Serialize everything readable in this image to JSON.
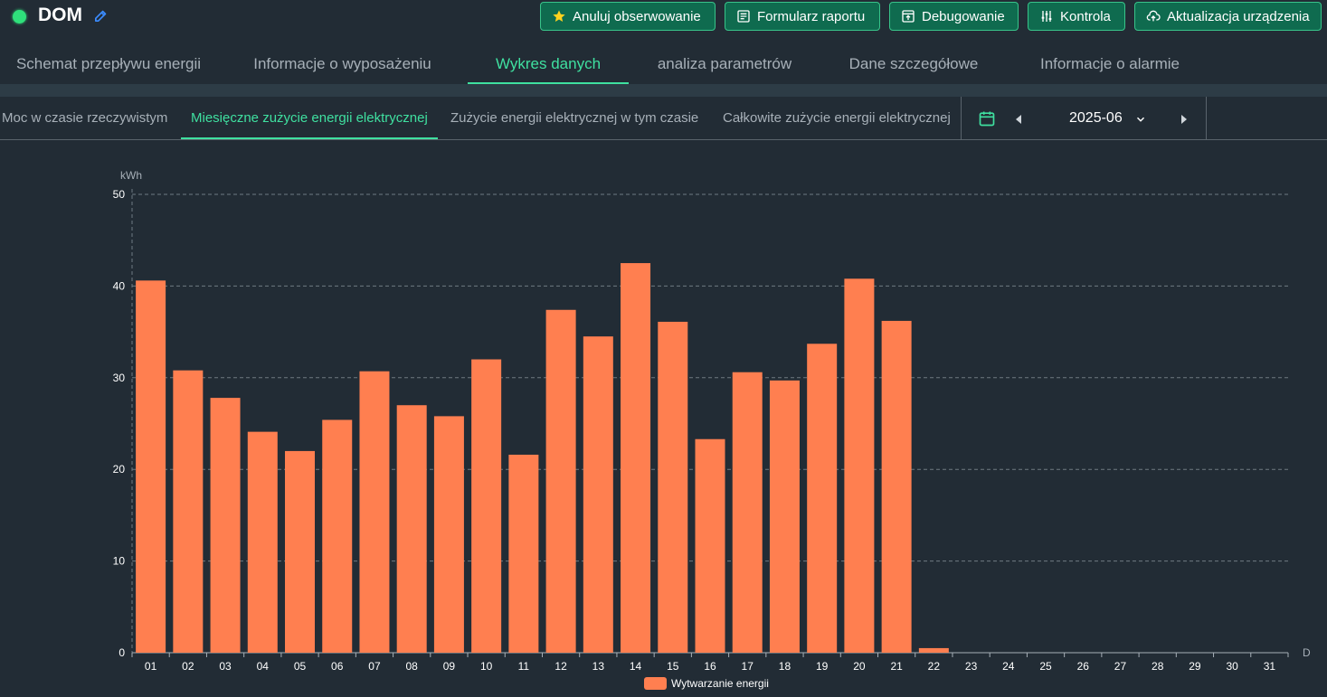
{
  "header": {
    "title": "DOM",
    "status_color": "#2fe07b",
    "buttons": [
      {
        "label": "Anuluj obserwowanie",
        "icon": "star-icon"
      },
      {
        "label": "Formularz raportu",
        "icon": "report-form-icon"
      },
      {
        "label": "Debugowanie",
        "icon": "debug-icon"
      },
      {
        "label": "Kontrola",
        "icon": "sliders-icon"
      },
      {
        "label": "Aktualizacja urządzenia",
        "icon": "cloud-upload-icon"
      }
    ]
  },
  "main_tabs": [
    {
      "label": "Schemat przepływu energii",
      "active": false
    },
    {
      "label": "Informacje o wyposażeniu",
      "active": false
    },
    {
      "label": "Wykres danych",
      "active": true
    },
    {
      "label": "analiza parametrów",
      "active": false
    },
    {
      "label": "Dane szczegółowe",
      "active": false
    },
    {
      "label": "Informacje o alarmie",
      "active": false
    }
  ],
  "sub_tabs": [
    {
      "label": "Moc w czasie rzeczywistym",
      "active": false
    },
    {
      "label": "Miesięczne zużycie energii elektrycznej",
      "active": true
    },
    {
      "label": "Zużycie energii elektrycznej w tym czasie",
      "active": false
    },
    {
      "label": "Całkowite zużycie energii elektrycznej",
      "active": false
    }
  ],
  "date_picker": {
    "value": "2025-06"
  },
  "colors": {
    "accent": "#3fe0a0",
    "bar": "#ff7f50",
    "button_bg": "#0f6b4f"
  },
  "chart_data": {
    "type": "bar",
    "ylabel": "kWh",
    "xlabel": "D",
    "ylim": [
      0,
      50
    ],
    "yticks": [
      0,
      10,
      20,
      30,
      40,
      50
    ],
    "grid": true,
    "legend_position": "bottom-center",
    "categories": [
      "01",
      "02",
      "03",
      "04",
      "05",
      "06",
      "07",
      "08",
      "09",
      "10",
      "11",
      "12",
      "13",
      "14",
      "15",
      "16",
      "17",
      "18",
      "19",
      "20",
      "21",
      "22",
      "23",
      "24",
      "25",
      "26",
      "27",
      "28",
      "29",
      "30",
      "31"
    ],
    "series": [
      {
        "name": "Wytwarzanie energii",
        "values": [
          40.6,
          30.8,
          27.8,
          24.1,
          22.0,
          25.4,
          30.7,
          27.0,
          25.8,
          32.0,
          21.6,
          37.4,
          34.5,
          42.5,
          36.1,
          23.3,
          30.6,
          29.7,
          33.7,
          40.8,
          36.2,
          0.5,
          null,
          null,
          null,
          null,
          null,
          null,
          null,
          null,
          null
        ]
      }
    ]
  }
}
